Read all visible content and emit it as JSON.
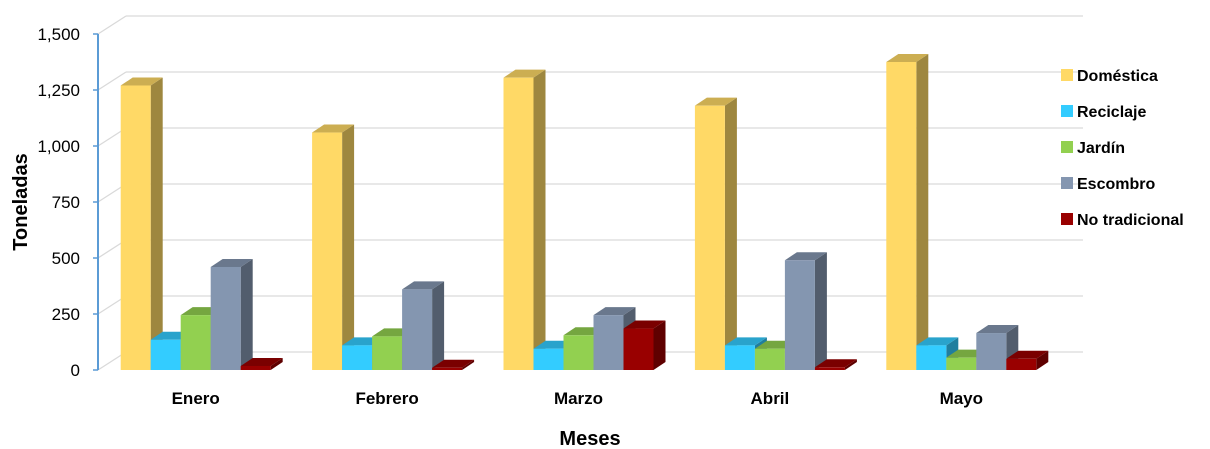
{
  "chart_data": {
    "type": "bar",
    "title": "",
    "xlabel": "Meses",
    "ylabel": "Toneladas",
    "categories": [
      "Enero",
      "Febrero",
      "Marzo",
      "Abril",
      "Mayo"
    ],
    "ylim": [
      0,
      1500
    ],
    "yticks": [
      "0",
      "250",
      "500",
      "750",
      "1,000",
      "1,250",
      "1,500"
    ],
    "grid": true,
    "legend_position": "right",
    "series": [
      {
        "name": "Doméstica",
        "color": "#FFD966",
        "values": [
          1270,
          1060,
          1305,
          1180,
          1375
        ]
      },
      {
        "name": "Reciclaje",
        "color": "#33CCFF",
        "values": [
          135,
          110,
          95,
          110,
          110
        ]
      },
      {
        "name": "Jardín",
        "color": "#92D050",
        "values": [
          245,
          150,
          155,
          95,
          55
        ]
      },
      {
        "name": "Escombro",
        "color": "#8496B0",
        "values": [
          460,
          360,
          245,
          490,
          165
        ]
      },
      {
        "name": "No tradicional",
        "color": "#990000",
        "values": [
          18,
          10,
          185,
          12,
          50
        ]
      }
    ]
  }
}
